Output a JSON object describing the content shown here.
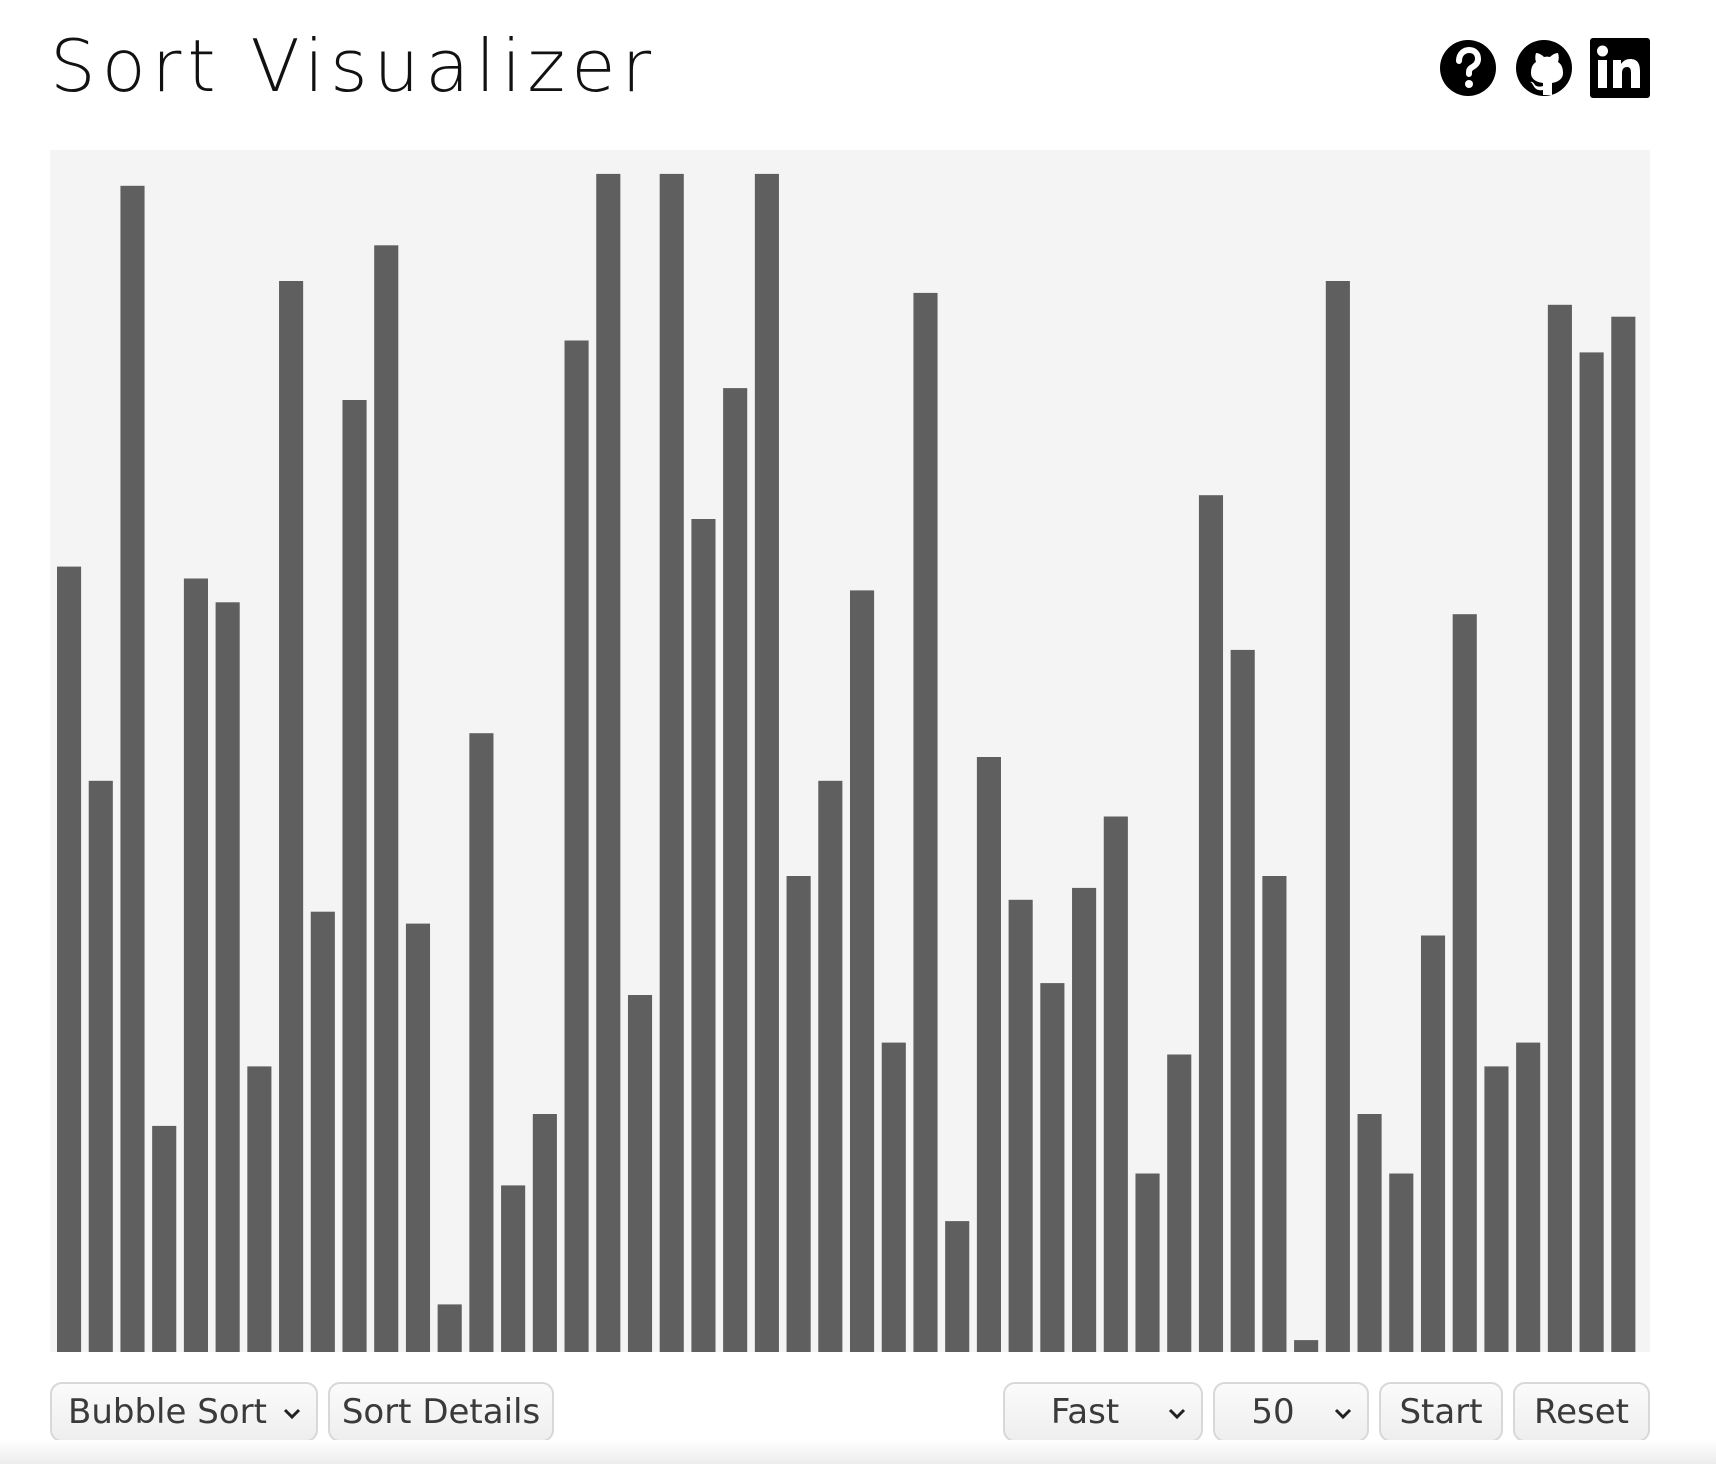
{
  "header": {
    "title": "Sort Visualizer",
    "icons": [
      "help-icon",
      "github-icon",
      "linkedin-icon"
    ]
  },
  "colors": {
    "bar": "#5f5f5f",
    "canvas_background": "#f4f4f4",
    "title": "#111111"
  },
  "chart_data": {
    "type": "bar",
    "values": [
      66,
      48,
      98,
      19,
      65,
      63,
      24,
      90,
      37,
      80,
      93,
      36,
      4,
      52,
      14,
      20,
      85,
      99,
      30,
      99,
      70,
      81,
      99,
      40,
      48,
      64,
      26,
      89,
      11,
      50,
      38,
      31,
      39,
      45,
      15,
      25,
      72,
      59,
      40,
      1,
      90,
      20,
      15,
      35,
      62,
      24,
      26,
      88,
      84,
      87
    ],
    "ylim": [
      0,
      100
    ]
  },
  "controls": {
    "algorithm": {
      "selected": "Bubble Sort"
    },
    "sort_details_label": "Sort Details",
    "speed": {
      "selected": "Fast"
    },
    "array_size": {
      "selected": "50"
    },
    "start_label": "Start",
    "reset_label": "Reset"
  }
}
